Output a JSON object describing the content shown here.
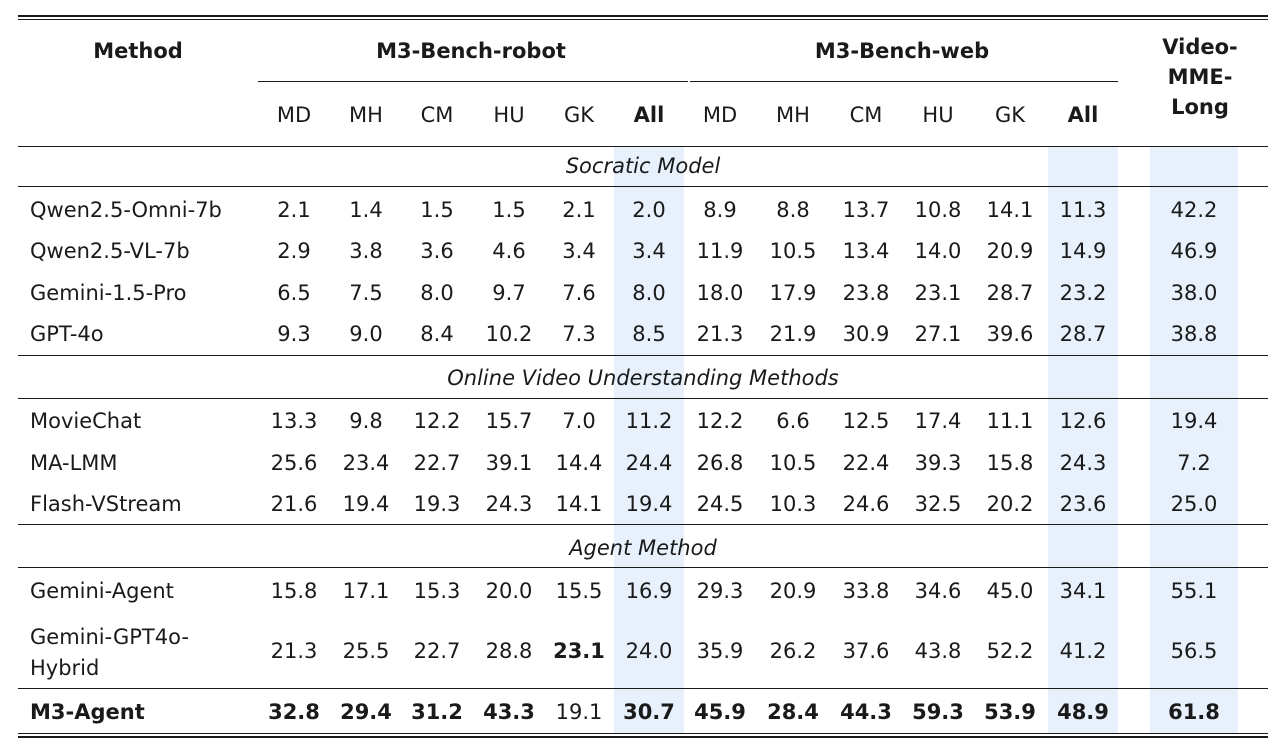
{
  "header": {
    "method": "Method",
    "group_robot": "M3-Bench-robot",
    "group_web": "M3-Bench-web",
    "video_mme_long": "Video-MME-Long",
    "video_line1": "Video-",
    "video_line2": "MME-",
    "video_line3": "Long",
    "subcolumns": [
      "MD",
      "MH",
      "CM",
      "HU",
      "GK",
      "All",
      "MD",
      "MH",
      "CM",
      "HU",
      "GK",
      "All"
    ]
  },
  "sections": [
    {
      "title": "Socratic Model",
      "rows": [
        {
          "method": "Qwen2.5-Omni-7b",
          "values": [
            "2.1",
            "1.4",
            "1.5",
            "1.5",
            "2.1",
            "2.0",
            "8.9",
            "8.8",
            "13.7",
            "10.8",
            "14.1",
            "11.3",
            "42.2"
          ]
        },
        {
          "method": "Qwen2.5-VL-7b",
          "values": [
            "2.9",
            "3.8",
            "3.6",
            "4.6",
            "3.4",
            "3.4",
            "11.9",
            "10.5",
            "13.4",
            "14.0",
            "20.9",
            "14.9",
            "46.9"
          ]
        },
        {
          "method": "Gemini-1.5-Pro",
          "values": [
            "6.5",
            "7.5",
            "8.0",
            "9.7",
            "7.6",
            "8.0",
            "18.0",
            "17.9",
            "23.8",
            "23.1",
            "28.7",
            "23.2",
            "38.0"
          ]
        },
        {
          "method": "GPT-4o",
          "values": [
            "9.3",
            "9.0",
            "8.4",
            "10.2",
            "7.3",
            "8.5",
            "21.3",
            "21.9",
            "30.9",
            "27.1",
            "39.6",
            "28.7",
            "38.8"
          ]
        }
      ]
    },
    {
      "title": "Online Video Understanding Methods",
      "rows": [
        {
          "method": "MovieChat",
          "values": [
            "13.3",
            "9.8",
            "12.2",
            "15.7",
            "7.0",
            "11.2",
            "12.2",
            "6.6",
            "12.5",
            "17.4",
            "11.1",
            "12.6",
            "19.4"
          ]
        },
        {
          "method": "MA-LMM",
          "values": [
            "25.6",
            "23.4",
            "22.7",
            "39.1",
            "14.4",
            "24.4",
            "26.8",
            "10.5",
            "22.4",
            "39.3",
            "15.8",
            "24.3",
            "7.2"
          ]
        },
        {
          "method": "Flash-VStream",
          "values": [
            "21.6",
            "19.4",
            "19.3",
            "24.3",
            "14.1",
            "19.4",
            "24.5",
            "10.3",
            "24.6",
            "32.5",
            "20.2",
            "23.6",
            "25.0"
          ]
        }
      ]
    },
    {
      "title": "Agent Method",
      "rows": [
        {
          "method": "Gemini-Agent",
          "values": [
            "15.8",
            "17.1",
            "15.3",
            "20.0",
            "15.5",
            "16.9",
            "29.3",
            "20.9",
            "33.8",
            "34.6",
            "45.0",
            "34.1",
            "55.1"
          ]
        },
        {
          "method": "Gemini-GPT4o-Hybrid",
          "method_line1": "Gemini-GPT4o-",
          "method_line2": "Hybrid",
          "values": [
            "21.3",
            "25.5",
            "22.7",
            "28.8",
            "23.1",
            "24.0",
            "35.9",
            "26.2",
            "37.6",
            "43.8",
            "52.2",
            "41.2",
            "56.5"
          ],
          "bold_indices": [
            4
          ]
        }
      ]
    }
  ],
  "final_row": {
    "method": "M3-Agent",
    "values": [
      "32.8",
      "29.4",
      "31.2",
      "43.3",
      "19.1",
      "30.7",
      "45.9",
      "28.4",
      "44.3",
      "59.3",
      "53.9",
      "48.9",
      "61.8"
    ],
    "bold_indices": [
      0,
      1,
      2,
      3,
      5,
      6,
      7,
      8,
      9,
      10,
      11,
      12
    ]
  },
  "colors": {
    "highlight": "#e7f0fb",
    "rule": "#1a1a1a"
  }
}
